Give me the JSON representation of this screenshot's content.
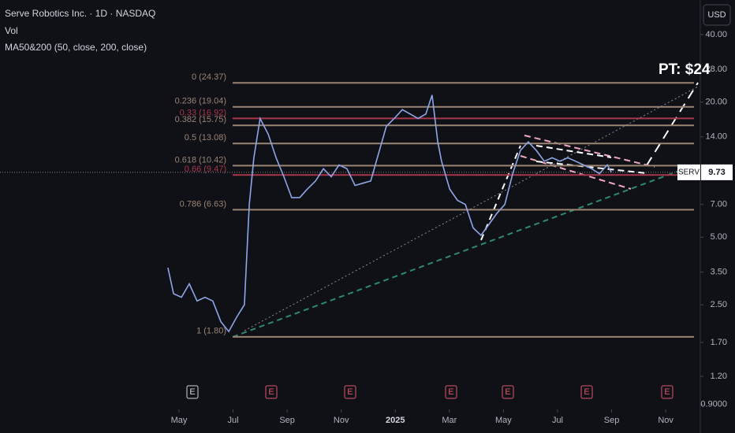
{
  "header": {
    "symbol": "Serve Robotics Inc. · 1D · NASDAQ",
    "volume": "Vol",
    "indicator": "MA50&200 (50, close, 200, close)",
    "currency": "USD"
  },
  "chart_data": {
    "type": "line",
    "log_scale": true,
    "color": "#8fa6e6",
    "x": [
      3.59,
      3.8,
      4.09,
      4.38,
      4.67,
      4.96,
      5.25,
      5.55,
      5.84,
      6.13,
      6.42,
      6.6,
      6.77,
      7.0,
      7.3,
      7.59,
      7.88,
      8.17,
      8.46,
      8.75,
      9.05,
      9.34,
      9.63,
      9.92,
      10.21,
      10.51,
      10.8,
      11.09,
      11.38,
      11.67,
      11.96,
      12.26,
      12.55,
      12.84,
      13.13,
      13.36,
      13.57,
      13.71,
      14.01,
      14.3,
      14.59,
      14.88,
      15.17,
      15.46,
      15.76,
      16.05,
      16.34,
      16.63,
      16.92,
      17.21,
      17.51,
      17.8,
      18.09,
      18.38,
      18.67,
      18.96,
      19.26,
      19.55,
      19.84,
      19.99
    ],
    "values": [
      3.66,
      2.8,
      2.7,
      3.1,
      2.6,
      2.7,
      2.6,
      2.1,
      1.9,
      2.2,
      2.5,
      7.0,
      11.3,
      16.9,
      14.4,
      11.3,
      9.3,
      7.5,
      7.5,
      8.2,
      8.9,
      10.1,
      9.3,
      10.5,
      10.1,
      8.5,
      8.7,
      8.9,
      11.8,
      15.6,
      16.9,
      18.5,
      17.7,
      16.9,
      17.7,
      21.5,
      13.3,
      10.9,
      8.2,
      7.3,
      7.0,
      5.5,
      5.1,
      5.7,
      6.4,
      7.0,
      9.6,
      12.2,
      13.3,
      12.2,
      10.9,
      11.3,
      10.9,
      11.3,
      10.9,
      10.5,
      10.1,
      9.6,
      10.5,
      9.73
    ],
    "xlim": [
      -2.62,
      23.28
    ],
    "xticks": [
      {
        "value": 4,
        "label": "May"
      },
      {
        "value": 6,
        "label": "Jul"
      },
      {
        "value": 8,
        "label": "Sep"
      },
      {
        "value": 10,
        "label": "Nov"
      },
      {
        "value": 12,
        "label": "2025"
      },
      {
        "value": 14,
        "label": "Mar"
      },
      {
        "value": 16,
        "label": "May"
      },
      {
        "value": 18,
        "label": "Jul"
      },
      {
        "value": 20,
        "label": "Sep"
      },
      {
        "value": 22,
        "label": "Nov"
      }
    ],
    "ylim": [
      0.855,
      57
    ],
    "yticks": [
      {
        "value": 40,
        "label": "40.00"
      },
      {
        "value": 28,
        "label": "28.00"
      },
      {
        "value": 20,
        "label": "20.00"
      },
      {
        "value": 14,
        "label": "14.00"
      },
      {
        "value": 7,
        "label": "7.00"
      },
      {
        "value": 5,
        "label": "5.00"
      },
      {
        "value": 3.5,
        "label": "3.50"
      },
      {
        "value": 2.5,
        "label": "2.50"
      },
      {
        "value": 1.7,
        "label": "1.70"
      },
      {
        "value": 1.2,
        "label": "1.20"
      },
      {
        "value": 0.9,
        "label": "0.9000"
      }
    ],
    "levels": [
      {
        "label": "0 (24.37)",
        "value": 24.37,
        "color": "#9c8473"
      },
      {
        "label": "0.236 (19.04)",
        "value": 19.04,
        "color": "#9c8473"
      },
      {
        "label": "0.33 (16.92)",
        "value": 16.92,
        "color": "#a8374c"
      },
      {
        "label": "0.382 (15.75)",
        "value": 15.75,
        "color": "#9c8473"
      },
      {
        "label": "0.5 (13.08)",
        "value": 13.08,
        "color": "#9c8473"
      },
      {
        "label": "0.618 (10.42)",
        "value": 10.42,
        "color": "#9c8473"
      },
      {
        "label": "0.66 (9.47)",
        "value": 9.47,
        "color": "#a8374c"
      },
      {
        "label": "0.786 (6.63)",
        "value": 6.63,
        "color": "#9c8473"
      },
      {
        "label": "1 (1.80)",
        "value": 1.8,
        "color": "#9c8473"
      }
    ],
    "last_price": {
      "label": "SERV",
      "value": 9.73
    },
    "annotation": "PT: $24",
    "earnings_markers": [
      "E",
      "E",
      "E",
      "E",
      "E",
      "E",
      "E"
    ]
  }
}
